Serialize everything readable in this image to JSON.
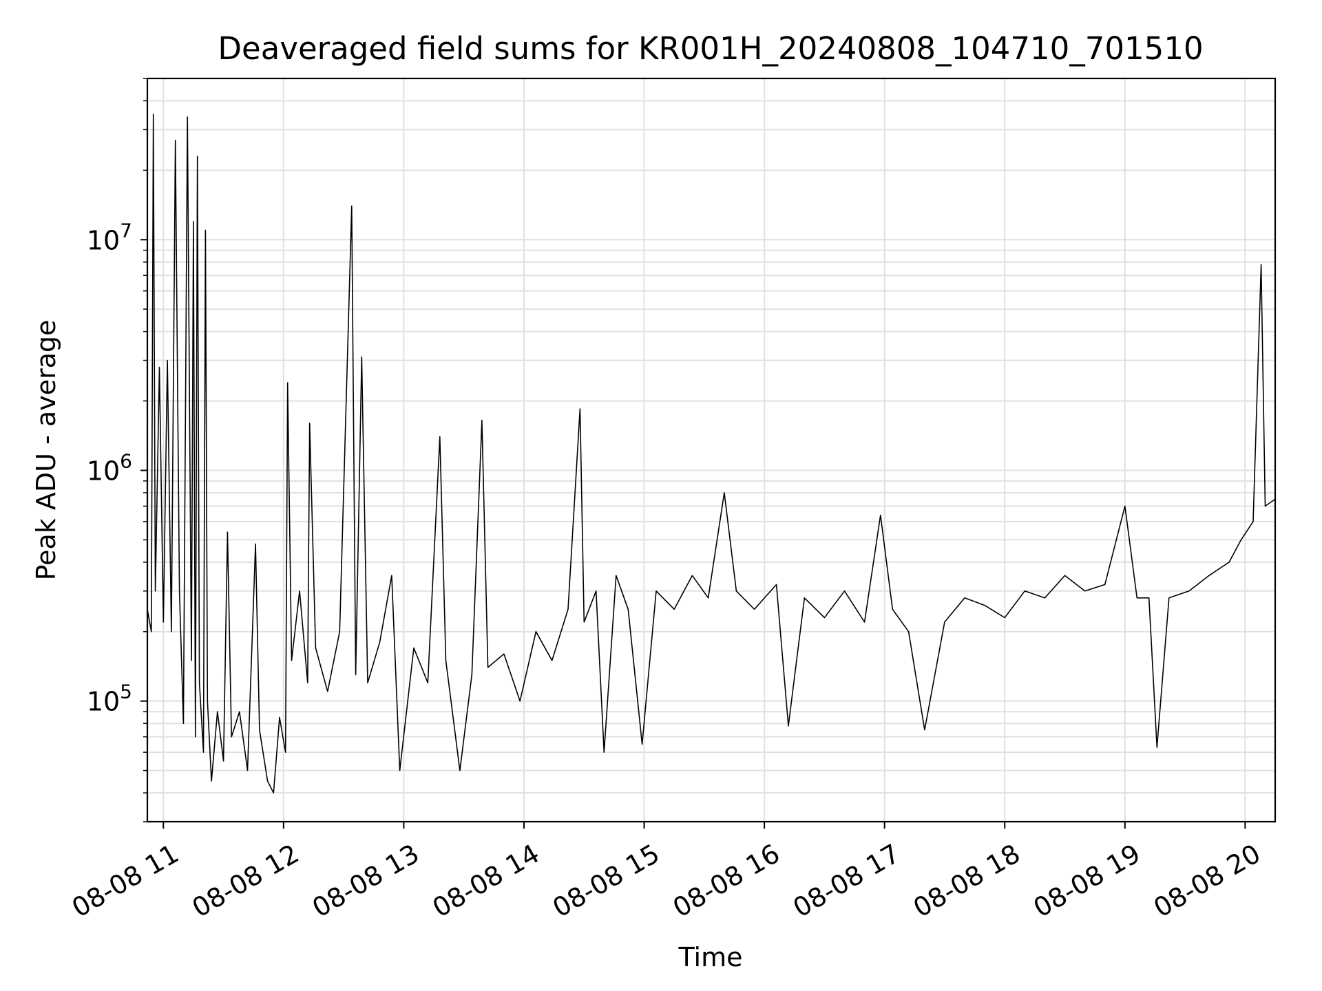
{
  "chart_data": {
    "type": "line",
    "title": "Deaveraged field sums for KR001H_20240808_104710_701510",
    "xlabel": "Time",
    "ylabel": "Peak ADU - average",
    "yscale": "log",
    "xlim": [
      "2024-08-08 10:52",
      "2024-08-08 20:15"
    ],
    "ylim": [
      30000,
      50000000
    ],
    "x_ticks": [
      "08-08 11",
      "08-08 12",
      "08-08 13",
      "08-08 14",
      "08-08 15",
      "08-08 16",
      "08-08 17",
      "08-08 18",
      "08-08 19",
      "08-08 20"
    ],
    "y_ticks": [
      {
        "base": "10",
        "exp": "5",
        "value": 100000
      },
      {
        "base": "10",
        "exp": "6",
        "value": 1000000
      },
      {
        "base": "10",
        "exp": "7",
        "value": 10000000
      }
    ],
    "grid": true,
    "line_color": "#000000",
    "series": [
      {
        "points": [
          [
            "2024-08-08 10:52",
            250000
          ],
          [
            "2024-08-08 10:54",
            200000
          ],
          [
            "2024-08-08 10:55",
            35000000
          ],
          [
            "2024-08-08 10:56",
            300000
          ],
          [
            "2024-08-08 10:58",
            2800000
          ],
          [
            "2024-08-08 11:00",
            220000
          ],
          [
            "2024-08-08 11:02",
            3000000
          ],
          [
            "2024-08-08 11:04",
            200000
          ],
          [
            "2024-08-08 11:06",
            27000000
          ],
          [
            "2024-08-08 11:08",
            300000
          ],
          [
            "2024-08-08 11:10",
            80000
          ],
          [
            "2024-08-08 11:12",
            34000000
          ],
          [
            "2024-08-08 11:14",
            150000
          ],
          [
            "2024-08-08 11:15",
            12000000
          ],
          [
            "2024-08-08 11:16",
            70000
          ],
          [
            "2024-08-08 11:17",
            23000000
          ],
          [
            "2024-08-08 11:18",
            120000
          ],
          [
            "2024-08-08 11:20",
            60000
          ],
          [
            "2024-08-08 11:21",
            11000000
          ],
          [
            "2024-08-08 11:22",
            100000
          ],
          [
            "2024-08-08 11:24",
            45000
          ],
          [
            "2024-08-08 11:27",
            90000
          ],
          [
            "2024-08-08 11:30",
            55000
          ],
          [
            "2024-08-08 11:32",
            540000
          ],
          [
            "2024-08-08 11:34",
            70000
          ],
          [
            "2024-08-08 11:38",
            90000
          ],
          [
            "2024-08-08 11:42",
            50000
          ],
          [
            "2024-08-08 11:46",
            480000
          ],
          [
            "2024-08-08 11:48",
            75000
          ],
          [
            "2024-08-08 11:52",
            45000
          ],
          [
            "2024-08-08 11:55",
            40000
          ],
          [
            "2024-08-08 11:58",
            85000
          ],
          [
            "2024-08-08 12:01",
            60000
          ],
          [
            "2024-08-08 12:02",
            2400000
          ],
          [
            "2024-08-08 12:04",
            150000
          ],
          [
            "2024-08-08 12:08",
            300000
          ],
          [
            "2024-08-08 12:12",
            120000
          ],
          [
            "2024-08-08 12:13",
            1600000
          ],
          [
            "2024-08-08 12:16",
            170000
          ],
          [
            "2024-08-08 12:22",
            110000
          ],
          [
            "2024-08-08 12:28",
            200000
          ],
          [
            "2024-08-08 12:34",
            14000000
          ],
          [
            "2024-08-08 12:36",
            130000
          ],
          [
            "2024-08-08 12:39",
            3100000
          ],
          [
            "2024-08-08 12:42",
            120000
          ],
          [
            "2024-08-08 12:48",
            180000
          ],
          [
            "2024-08-08 12:54",
            350000
          ],
          [
            "2024-08-08 12:58",
            50000
          ],
          [
            "2024-08-08 13:05",
            170000
          ],
          [
            "2024-08-08 13:12",
            120000
          ],
          [
            "2024-08-08 13:18",
            1400000
          ],
          [
            "2024-08-08 13:21",
            150000
          ],
          [
            "2024-08-08 13:28",
            50000
          ],
          [
            "2024-08-08 13:34",
            130000
          ],
          [
            "2024-08-08 13:39",
            1650000
          ],
          [
            "2024-08-08 13:42",
            140000
          ],
          [
            "2024-08-08 13:50",
            160000
          ],
          [
            "2024-08-08 13:58",
            100000
          ],
          [
            "2024-08-08 14:06",
            200000
          ],
          [
            "2024-08-08 14:14",
            150000
          ],
          [
            "2024-08-08 14:22",
            250000
          ],
          [
            "2024-08-08 14:28",
            1850000
          ],
          [
            "2024-08-08 14:30",
            220000
          ],
          [
            "2024-08-08 14:36",
            300000
          ],
          [
            "2024-08-08 14:40",
            60000
          ],
          [
            "2024-08-08 14:46",
            350000
          ],
          [
            "2024-08-08 14:52",
            250000
          ],
          [
            "2024-08-08 14:59",
            65000
          ],
          [
            "2024-08-08 15:06",
            300000
          ],
          [
            "2024-08-08 15:15",
            250000
          ],
          [
            "2024-08-08 15:24",
            350000
          ],
          [
            "2024-08-08 15:32",
            280000
          ],
          [
            "2024-08-08 15:40",
            800000
          ],
          [
            "2024-08-08 15:46",
            300000
          ],
          [
            "2024-08-08 15:55",
            250000
          ],
          [
            "2024-08-08 16:06",
            320000
          ],
          [
            "2024-08-08 16:12",
            78000
          ],
          [
            "2024-08-08 16:20",
            280000
          ],
          [
            "2024-08-08 16:30",
            230000
          ],
          [
            "2024-08-08 16:40",
            300000
          ],
          [
            "2024-08-08 16:50",
            220000
          ],
          [
            "2024-08-08 16:58",
            640000
          ],
          [
            "2024-08-08 17:04",
            250000
          ],
          [
            "2024-08-08 17:12",
            200000
          ],
          [
            "2024-08-08 17:20",
            75000
          ],
          [
            "2024-08-08 17:30",
            220000
          ],
          [
            "2024-08-08 17:40",
            280000
          ],
          [
            "2024-08-08 17:50",
            260000
          ],
          [
            "2024-08-08 18:00",
            230000
          ],
          [
            "2024-08-08 18:10",
            300000
          ],
          [
            "2024-08-08 18:20",
            280000
          ],
          [
            "2024-08-08 18:30",
            350000
          ],
          [
            "2024-08-08 18:40",
            300000
          ],
          [
            "2024-08-08 18:50",
            320000
          ],
          [
            "2024-08-08 19:00",
            700000
          ],
          [
            "2024-08-08 19:06",
            280000
          ],
          [
            "2024-08-08 19:12",
            280000
          ],
          [
            "2024-08-08 19:16",
            63000
          ],
          [
            "2024-08-08 19:22",
            280000
          ],
          [
            "2024-08-08 19:32",
            300000
          ],
          [
            "2024-08-08 19:42",
            350000
          ],
          [
            "2024-08-08 19:52",
            400000
          ],
          [
            "2024-08-08 19:58",
            500000
          ],
          [
            "2024-08-08 20:04",
            600000
          ],
          [
            "2024-08-08 20:08",
            7800000
          ],
          [
            "2024-08-08 20:10",
            700000
          ],
          [
            "2024-08-08 20:15",
            750000
          ]
        ]
      }
    ]
  }
}
